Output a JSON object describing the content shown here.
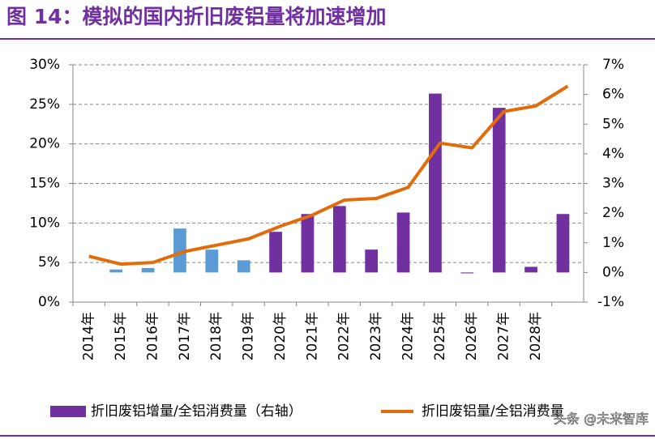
{
  "chart_data": {
    "type": "bar-line",
    "title": "图 14：模拟的国内折旧废铝量将加速增加",
    "categories": [
      "2014年",
      "2015年",
      "2016年",
      "2017年",
      "2018年",
      "2019年",
      "2020年",
      "2021年",
      "2022年",
      "2023年",
      "2024年",
      "2025年",
      "2026年",
      "2027年",
      "2028年",
      null
    ],
    "series": [
      {
        "name": "折旧废铝增量/全铝消费量（右轴）",
        "type": "bar",
        "axis": "y2",
        "color": "#7030a0",
        "colors": [
          "#7030a0",
          "#5b9bd5",
          "#5b9bd5",
          "#5b9bd5",
          "#5b9bd5",
          "#5b9bd5",
          "#7030a0",
          "#7030a0",
          "#7030a0",
          "#7030a0",
          "#7030a0",
          "#7030a0",
          "#7030a0",
          "#7030a0",
          "#7030a0",
          "#7030a0"
        ],
        "values": [
          null,
          0.1,
          0.15,
          1.48,
          0.77,
          0.41,
          1.37,
          1.97,
          2.24,
          0.77,
          2.02,
          6.03,
          -0.03,
          5.55,
          0.19,
          1.97
        ]
      },
      {
        "name": "折旧废铝量/全铝消费量",
        "type": "line",
        "color": "#e36c0a",
        "values": [
          5.8,
          4.8,
          5.0,
          6.4,
          7.2,
          8.0,
          9.6,
          11.0,
          12.9,
          13.1,
          14.5,
          20.1,
          19.5,
          24.1,
          24.8,
          27.3
        ]
      }
    ],
    "ylim": [
      0,
      30
    ],
    "yticks": [
      {
        "value": 0,
        "label": "0%"
      },
      {
        "value": 5,
        "label": "5%"
      },
      {
        "value": 10,
        "label": "10%"
      },
      {
        "value": 15,
        "label": "15%"
      },
      {
        "value": 20,
        "label": "20%"
      },
      {
        "value": 25,
        "label": "25%"
      },
      {
        "value": 30,
        "label": "30%"
      }
    ],
    "y2lim": [
      -1,
      7
    ],
    "y2ticks": [
      {
        "value": -1,
        "label": "-1%"
      },
      {
        "value": 0,
        "label": "0%"
      },
      {
        "value": 1,
        "label": "1%"
      },
      {
        "value": 2,
        "label": "2%"
      },
      {
        "value": 3,
        "label": "3%"
      },
      {
        "value": 4,
        "label": "4%"
      },
      {
        "value": 5,
        "label": "5%"
      },
      {
        "value": 6,
        "label": "6%"
      },
      {
        "value": 7,
        "label": "7%"
      }
    ],
    "grid": true,
    "watermark": "头条 @未来智库"
  }
}
